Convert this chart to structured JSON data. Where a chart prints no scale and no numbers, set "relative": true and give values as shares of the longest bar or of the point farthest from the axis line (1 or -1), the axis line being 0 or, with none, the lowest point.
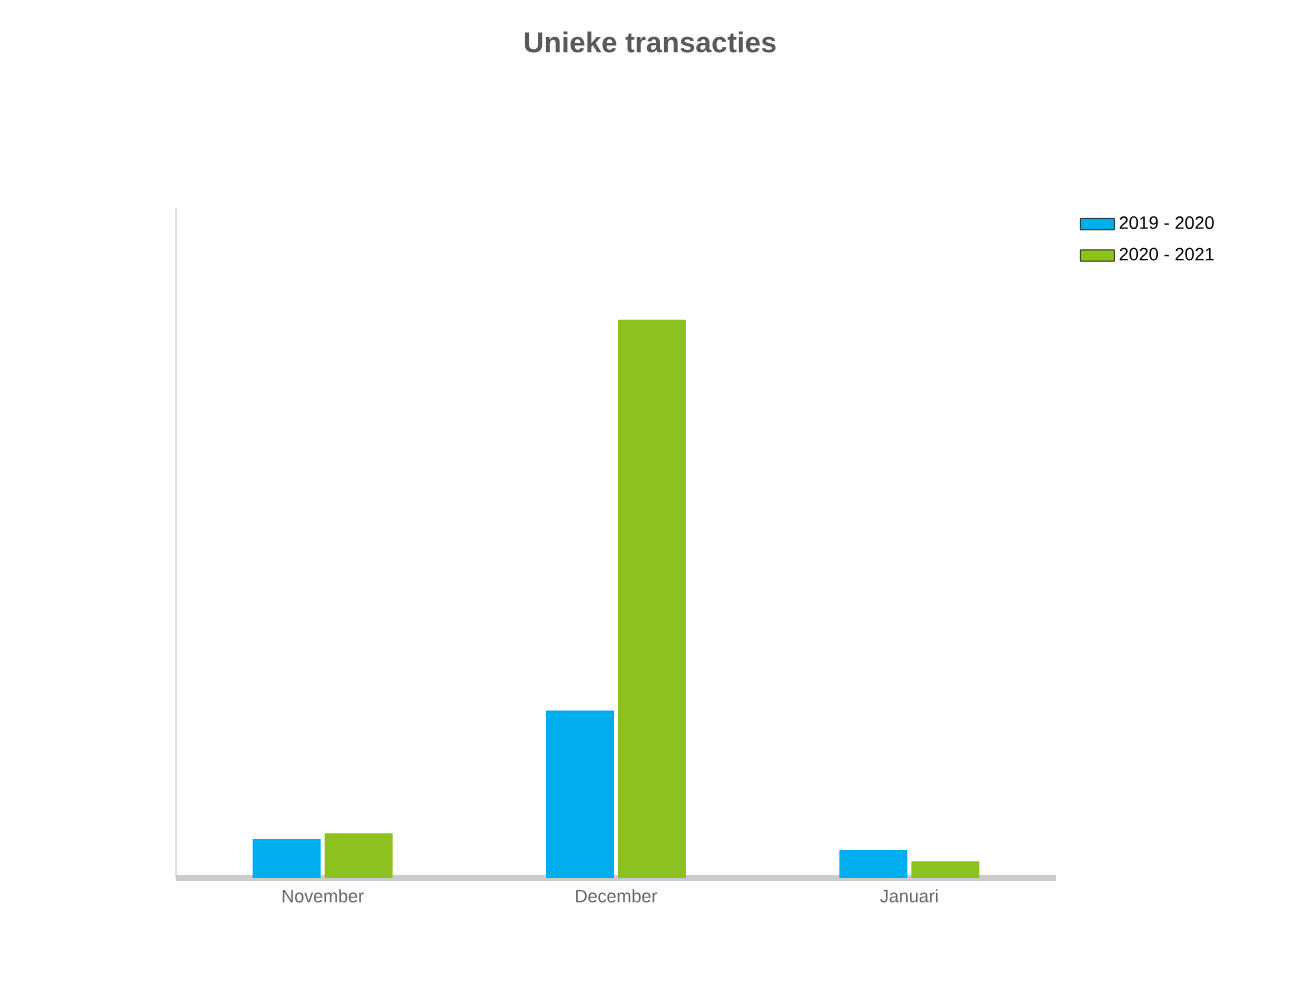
{
  "chart_data": {
    "type": "bar",
    "title": "Unieke transacties",
    "categories": [
      "November",
      "December",
      "Januari"
    ],
    "relative": true,
    "legend": "top right",
    "series": [
      {
        "name": "2019 - 2020",
        "color": "#00aeef",
        "values": [
          0.07,
          0.3,
          0.05
        ]
      },
      {
        "name": "2020 - 2021",
        "color": "#8cc11f",
        "values": [
          0.08,
          1,
          0.03
        ]
      }
    ]
  }
}
